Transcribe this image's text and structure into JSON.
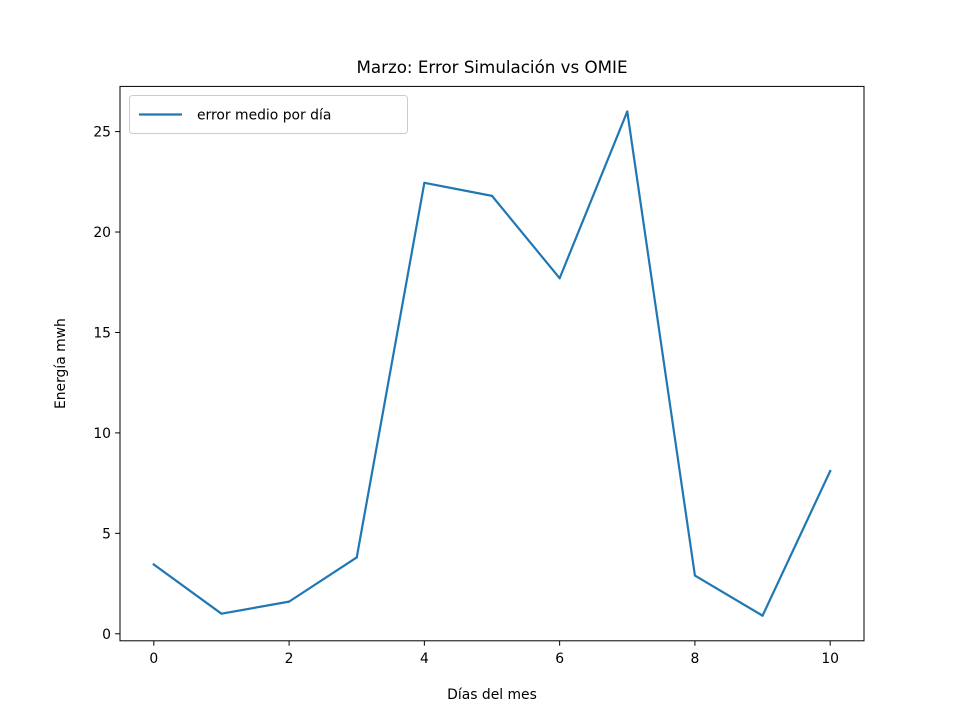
{
  "chart_data": {
    "type": "line",
    "title": "Marzo: Error Simulación vs OMIE",
    "xlabel": "Días del mes",
    "ylabel": "Energía mwh",
    "xlim": [
      -0.5,
      10.5
    ],
    "ylim": [
      -0.35,
      27.25
    ],
    "xticks": [
      0,
      2,
      4,
      6,
      8,
      10
    ],
    "yticks": [
      0,
      5,
      10,
      15,
      20,
      25
    ],
    "grid": false,
    "legend_position": "upper-left",
    "series": [
      {
        "name": "error medio por día",
        "color": "#1f77b4",
        "x": [
          0,
          1,
          2,
          3,
          4,
          5,
          6,
          7,
          8,
          9,
          10
        ],
        "values": [
          3.45,
          1.0,
          1.6,
          3.8,
          22.45,
          21.8,
          17.7,
          26.0,
          2.9,
          0.9,
          8.1
        ]
      }
    ]
  }
}
